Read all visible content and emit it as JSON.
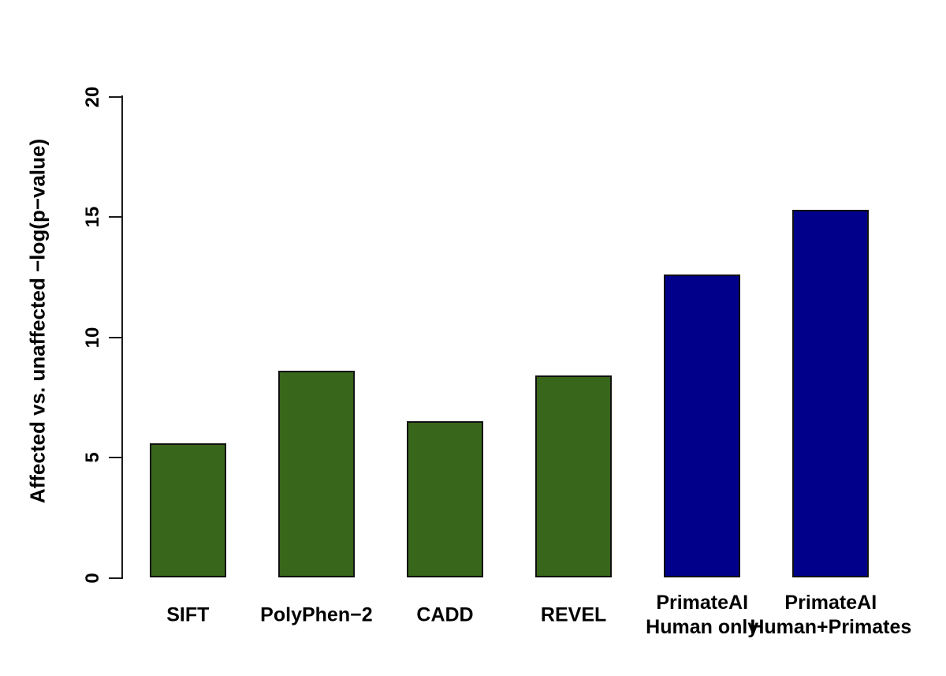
{
  "chart_data": {
    "type": "bar",
    "title": "",
    "xlabel": "",
    "ylabel": "Affected vs. unaffected −log(p−value)",
    "ylim": [
      0,
      20
    ],
    "yticks": [
      0,
      5,
      10,
      15,
      20
    ],
    "grid": "off",
    "legend": "none",
    "categories": [
      [
        "SIFT"
      ],
      [
        "PolyPhen−2"
      ],
      [
        "CADD"
      ],
      [
        "REVEL"
      ],
      [
        "PrimateAI",
        "Human only"
      ],
      [
        "PrimateAI",
        "Human+Primates"
      ]
    ],
    "values": [
      5.6,
      8.6,
      6.5,
      8.4,
      12.6,
      15.3
    ],
    "bar_colors": [
      "#38661B",
      "#38661B",
      "#38661B",
      "#38661B",
      "#00008B",
      "#00008B"
    ],
    "bar_border_color": "#111111",
    "axis_color": "#1a1a1a"
  }
}
